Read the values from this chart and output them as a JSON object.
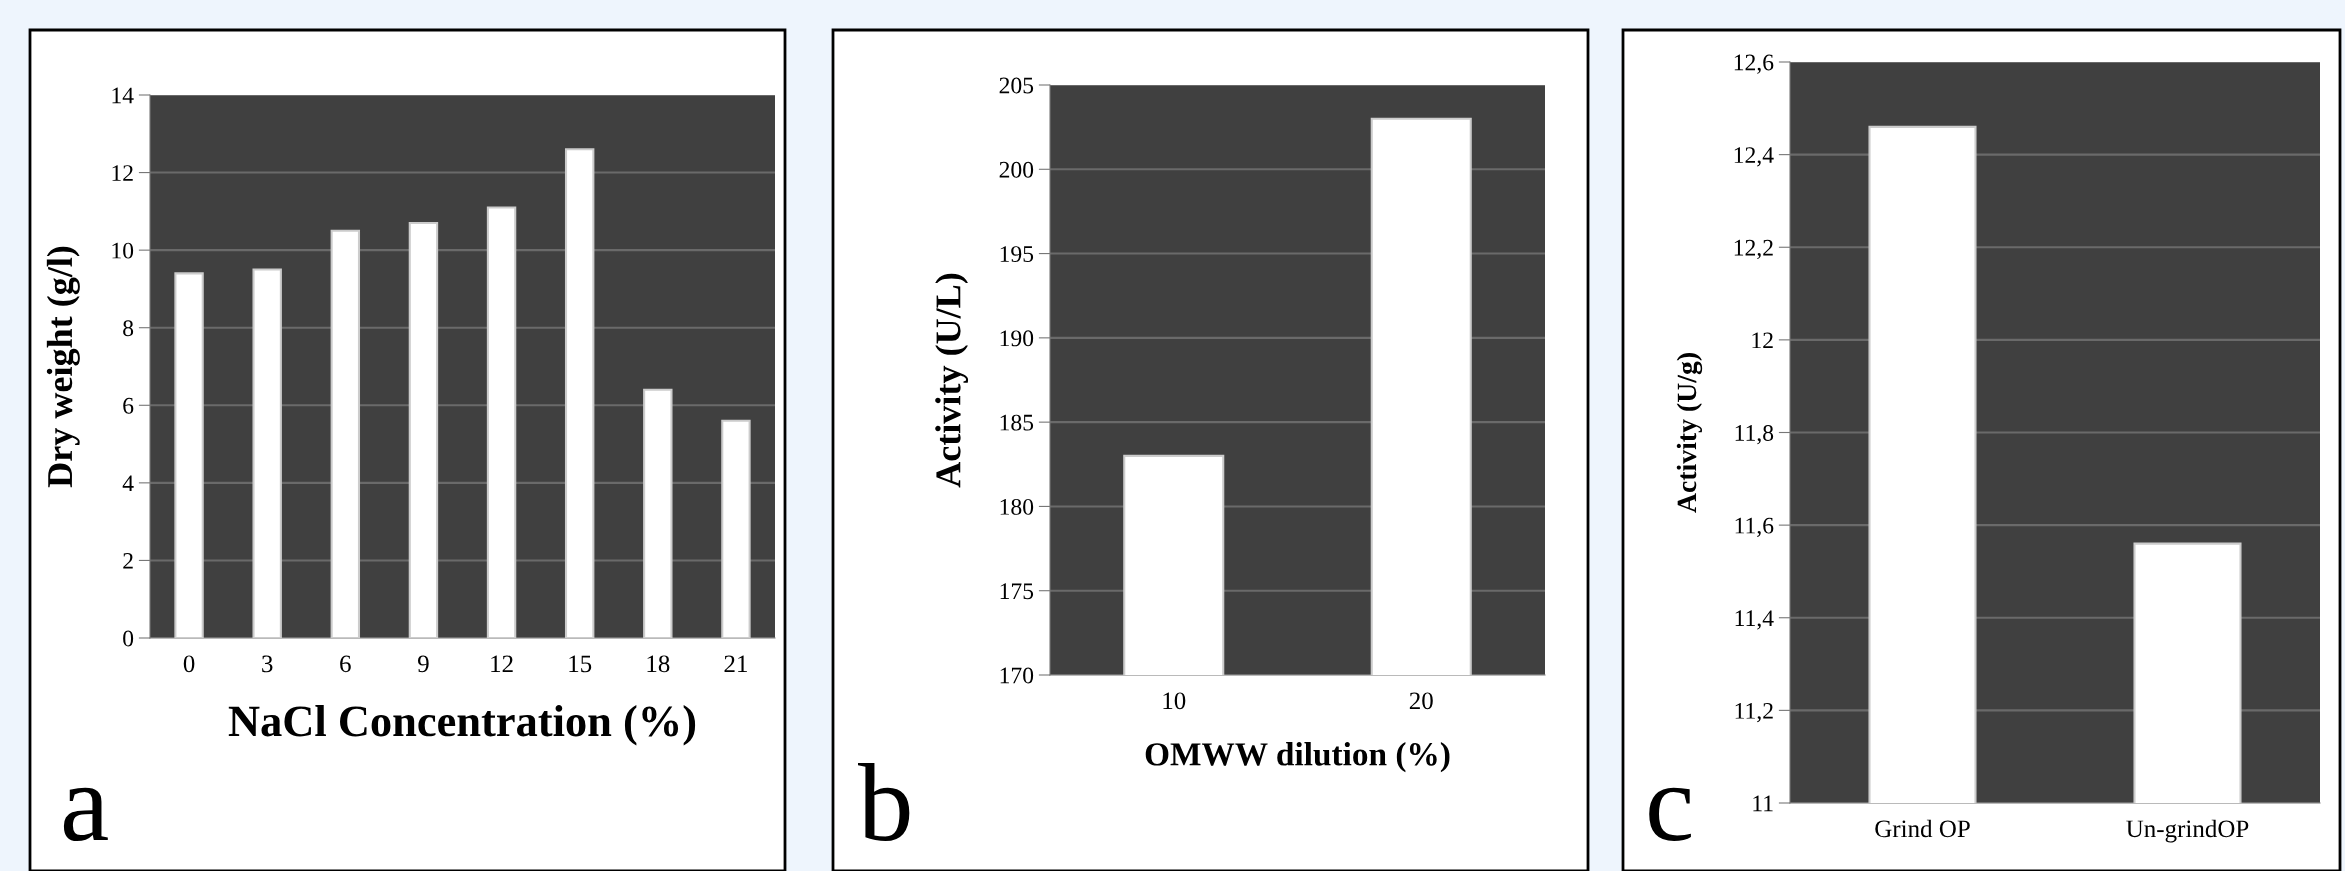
{
  "chart_data": [
    {
      "type": "bar",
      "xlabel": "NaCl Concentration (%)",
      "ylabel": "Dry weight (g/l)",
      "categories": [
        "0",
        "3",
        "6",
        "9",
        "12",
        "15",
        "18",
        "21"
      ],
      "values": [
        9.4,
        9.5,
        10.5,
        10.7,
        11.1,
        12.6,
        6.4,
        5.6
      ],
      "color": "#ffffff",
      "ylim": [
        0,
        14
      ],
      "yticks": [
        0,
        2,
        4,
        6,
        8,
        10,
        12,
        14
      ],
      "grid": "y",
      "annotations": [
        "a"
      ]
    },
    {
      "type": "bar",
      "xlabel": "OMWW dilution (%)",
      "ylabel": "Activity (U/L)",
      "categories": [
        "10",
        "20"
      ],
      "values": [
        183,
        203
      ],
      "color": "#ffffff",
      "ylim": [
        170,
        205
      ],
      "yticks": [
        170,
        175,
        180,
        185,
        190,
        195,
        200,
        205
      ],
      "grid": "y",
      "annotations": [
        "b"
      ]
    },
    {
      "type": "bar",
      "ylabel": "Activity (U/g)",
      "categories": [
        "Grind OP",
        "Un-grindOP"
      ],
      "values": [
        12.46,
        11.56
      ],
      "color": "#ffffff",
      "ylim": [
        11,
        12.6
      ],
      "yticks": [
        {
          "value": 11,
          "label": "11"
        },
        {
          "value": 11.2,
          "label": "11,2"
        },
        {
          "value": 11.4,
          "label": "11,4"
        },
        {
          "value": 11.6,
          "label": "11,6"
        },
        {
          "value": 11.8,
          "label": "11,8"
        },
        {
          "value": 12,
          "label": "12"
        },
        {
          "value": 12.2,
          "label": "12,2"
        },
        {
          "value": 12.4,
          "label": "12,4"
        },
        {
          "value": 12.6,
          "label": "12,6"
        }
      ],
      "grid": "y",
      "annotations": [
        "c"
      ]
    }
  ]
}
